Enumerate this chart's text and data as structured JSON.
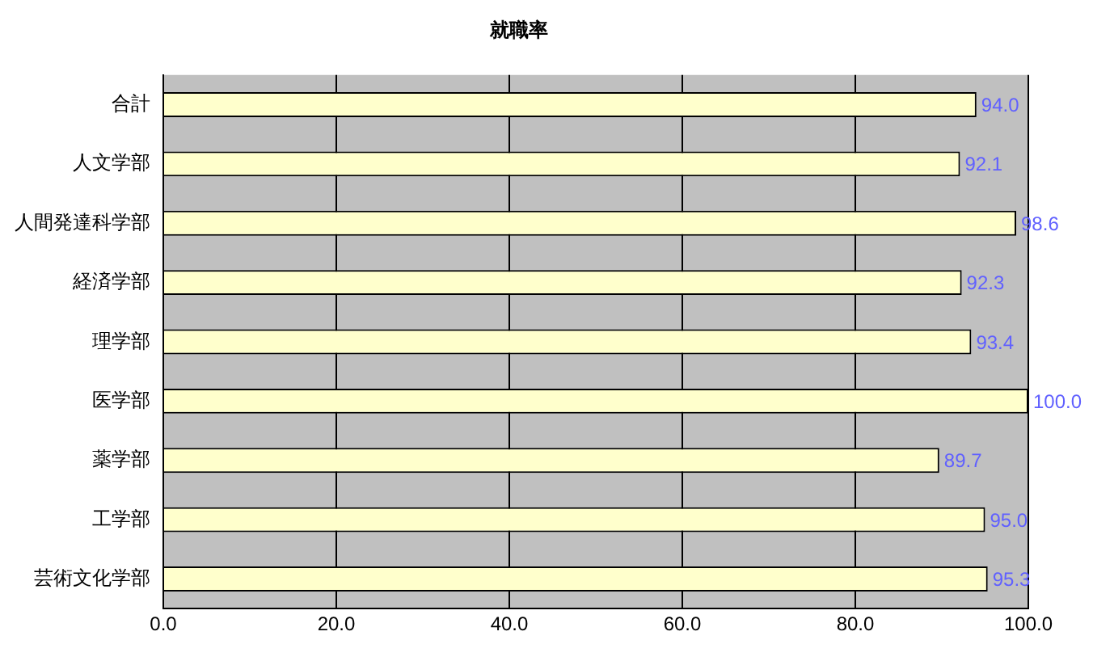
{
  "chart_data": {
    "type": "bar",
    "orientation": "horizontal",
    "title": "就職率",
    "categories": [
      "合計",
      "人文学部",
      "人間発達科学部",
      "経済学部",
      "理学部",
      "医学部",
      "薬学部",
      "工学部",
      "芸術文化学部"
    ],
    "values": [
      94.0,
      92.1,
      98.6,
      92.3,
      93.4,
      100.0,
      89.7,
      95.0,
      95.3
    ],
    "color": "#ffffcc",
    "value_labels": [
      "94.0",
      "92.1",
      "98.6",
      "92.3",
      "93.4",
      "100.0",
      "89.7",
      "95.0",
      "95.3"
    ],
    "xlim": [
      0,
      100
    ],
    "xticks": [
      {
        "value": 0,
        "label": "0.0"
      },
      {
        "value": 20,
        "label": "20.0"
      },
      {
        "value": 40,
        "label": "40.0"
      },
      {
        "value": 60,
        "label": "60.0"
      },
      {
        "value": 80,
        "label": "80.0"
      },
      {
        "value": 100,
        "label": "100.0"
      }
    ],
    "grid": "x",
    "legend": false
  }
}
